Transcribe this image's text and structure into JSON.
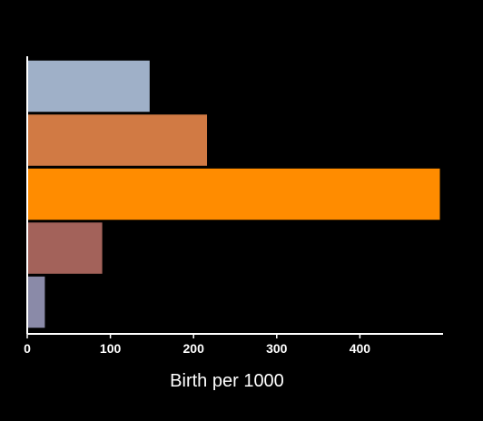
{
  "chart_data": {
    "type": "bar",
    "orientation": "horizontal",
    "title": "",
    "xlabel": "Birth per 1000",
    "ylabel": "",
    "categories": [
      "",
      "",
      "",
      "",
      ""
    ],
    "values": [
      148,
      217,
      497,
      91,
      22
    ],
    "colors": [
      "#9fb0c8",
      "#d17a44",
      "#ff8c00",
      "#a3625a",
      "#8a8aa8"
    ],
    "xlim": [
      0,
      500
    ],
    "xticks": [
      0,
      100,
      200,
      300,
      400
    ],
    "grid": false,
    "legend": "none"
  }
}
